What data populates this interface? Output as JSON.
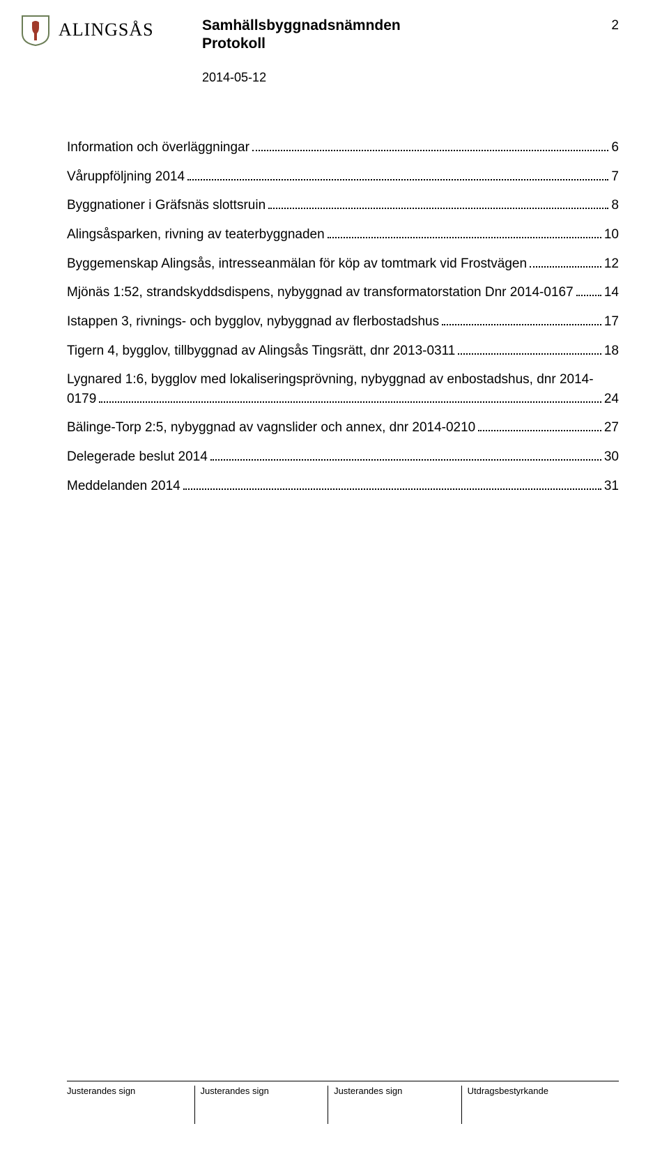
{
  "header": {
    "wordmark_alt": "ALINGSÅS",
    "crest_colors": {
      "shield_fill": "#ffffff",
      "shield_stroke": "#6b7d56",
      "figure": "#a03a2a"
    },
    "title": "Samhällsbyggnadsnämnden",
    "subtitle": "Protokoll",
    "date": "2014-05-12",
    "page_number": "2"
  },
  "toc": {
    "entries": [
      {
        "title": "Information och överläggningar",
        "page": "6"
      },
      {
        "title": "Våruppföljning 2014",
        "page": "7"
      },
      {
        "title": "Byggnationer i Gräfsnäs slottsruin",
        "page": "8"
      },
      {
        "title": "Alingsåsparken, rivning av teaterbyggnaden",
        "page": "10"
      },
      {
        "title": "Byggemenskap Alingsås, intresseanmälan för köp av tomtmark vid Frostvägen",
        "page": "12"
      },
      {
        "title": "Mjönäs 1:52, strandskyddsdispens, nybyggnad av transformatorstation Dnr 2014-0167",
        "page": "14"
      },
      {
        "title": "Istappen 3, rivnings- och bygglov, nybyggnad av flerbostadshus",
        "page": "17"
      },
      {
        "title": "Tigern 4, bygglov, tillbyggnad av Alingsås Tingsrätt, dnr 2013-0311",
        "page": "18"
      },
      {
        "title_line1": "Lygnared 1:6, bygglov med lokaliseringsprövning, nybyggnad av enbostadshus, dnr 2014-",
        "title_line2": "0179",
        "page": "24",
        "multiline": true
      },
      {
        "title": "Bälinge-Torp 2:5, nybyggnad av vagnslider och annex, dnr 2014-0210",
        "page": "27"
      },
      {
        "title": "Delegerade beslut 2014",
        "page": "30"
      },
      {
        "title": "Meddelanden 2014",
        "page": "31"
      }
    ]
  },
  "footer": {
    "cells": [
      "Justerandes sign",
      "Justerandes sign",
      "Justerandes sign",
      "Utdragsbestyrkande"
    ]
  }
}
